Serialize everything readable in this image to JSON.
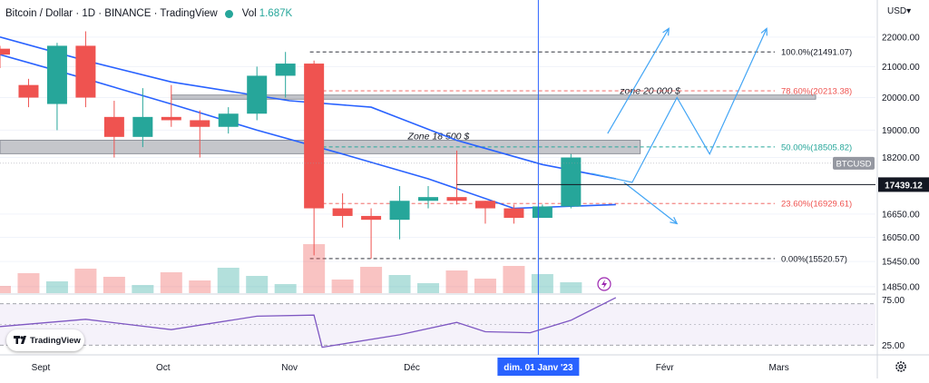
{
  "header": {
    "symbol_title": "Bitcoin / Dollar · 1D · BINANCE · TradingView",
    "volume_label": "Vol",
    "volume_value": "1.687K",
    "currency": "USD",
    "symbol_tag": "BTCUSD",
    "last_price": "17439.12"
  },
  "badge": {
    "label": "TradingView"
  },
  "icons": [
    "eye-icon",
    "tradingview-logo-icon",
    "lightning-icon",
    "gear-icon"
  ],
  "colors": {
    "up": "#26a69a",
    "down": "#ef5350",
    "ma": "#2962ff",
    "rsi": "#7e57c2",
    "crosshair": "#2962ff",
    "zone": "#9598a1",
    "arrows": "#42a5f5",
    "fib_red": "#ef5350",
    "fib_green": "#26a69a"
  },
  "chart_data": [
    {
      "type": "candlestick",
      "title": "Bitcoin / Dollar · 1D · BINANCE · TradingView",
      "price_scale": "log",
      "ylim": [
        14700,
        22600
      ],
      "y_ticks": [
        22000,
        21000,
        20000,
        19000,
        18200,
        17439.12,
        16650,
        16050,
        15450,
        14850
      ],
      "y_tick_labels": [
        "22000.00",
        "21000.00",
        "20000.00",
        "19000.00",
        "18200.00",
        "17439.12",
        "16650.00",
        "16050.00",
        "15450.00",
        "14850.00"
      ],
      "x_tick_labels": [
        "Sept",
        "Oct",
        "Nov",
        "Déc",
        "dim. 01 Janv '23",
        "Févr",
        "Mars"
      ],
      "x_range": [
        "2022-08-22",
        "2023-03-24"
      ],
      "crosshair_date": "2023-01-01",
      "current_price": 17439.12,
      "volume_header": "1.687K",
      "candles": [
        {
          "date": "2022-08-22",
          "o": 21600,
          "h": 21700,
          "l": 20950,
          "c": 21400
        },
        {
          "date": "2022-08-29",
          "o": 20400,
          "h": 20600,
          "l": 19700,
          "c": 20000
        },
        {
          "date": "2022-09-05",
          "o": 19800,
          "h": 21800,
          "l": 19000,
          "c": 21700
        },
        {
          "date": "2022-09-12",
          "o": 21700,
          "h": 22200,
          "l": 19700,
          "c": 20000
        },
        {
          "date": "2022-09-19",
          "o": 19400,
          "h": 19900,
          "l": 18200,
          "c": 18800
        },
        {
          "date": "2022-09-26",
          "o": 18800,
          "h": 20300,
          "l": 18500,
          "c": 19400
        },
        {
          "date": "2022-10-03",
          "o": 19400,
          "h": 20400,
          "l": 19100,
          "c": 19300
        },
        {
          "date": "2022-10-10",
          "o": 19300,
          "h": 19600,
          "l": 18200,
          "c": 19100
        },
        {
          "date": "2022-10-17",
          "o": 19100,
          "h": 19700,
          "l": 18900,
          "c": 19500
        },
        {
          "date": "2022-10-24",
          "o": 19500,
          "h": 21000,
          "l": 19300,
          "c": 20700
        },
        {
          "date": "2022-10-31",
          "o": 20700,
          "h": 21490,
          "l": 20000,
          "c": 21100
        },
        {
          "date": "2022-11-07",
          "o": 21100,
          "h": 21200,
          "l": 15600,
          "c": 16800
        },
        {
          "date": "2022-11-14",
          "o": 16800,
          "h": 17200,
          "l": 16300,
          "c": 16600
        },
        {
          "date": "2022-11-21",
          "o": 16600,
          "h": 16800,
          "l": 15520,
          "c": 16500
        },
        {
          "date": "2022-11-28",
          "o": 16500,
          "h": 17400,
          "l": 16000,
          "c": 17000
        },
        {
          "date": "2022-12-05",
          "o": 17000,
          "h": 17400,
          "l": 16800,
          "c": 17100
        },
        {
          "date": "2022-12-12",
          "o": 17100,
          "h": 18400,
          "l": 16900,
          "c": 17000
        },
        {
          "date": "2022-12-19",
          "o": 17000,
          "h": 17000,
          "l": 16400,
          "c": 16800
        },
        {
          "date": "2022-12-26",
          "o": 16800,
          "h": 16900,
          "l": 16400,
          "c": 16550
        },
        {
          "date": "2023-01-02",
          "o": 16550,
          "h": 16900,
          "l": 16550,
          "c": 16850
        },
        {
          "date": "2023-01-09",
          "o": 16850,
          "h": 18300,
          "l": 16800,
          "c": 18200
        }
      ],
      "moving_averages": [
        {
          "points": [
            [
              "2022-08-22",
              22000
            ],
            [
              "2022-09-12",
              21200
            ],
            [
              "2022-10-03",
              20500
            ],
            [
              "2022-11-01",
              19900
            ],
            [
              "2022-11-21",
              19700
            ],
            [
              "2022-12-12",
              18700
            ],
            [
              "2023-01-02",
              18000
            ],
            [
              "2023-01-20",
              17600
            ]
          ]
        },
        {
          "points": [
            [
              "2022-08-22",
              21400
            ],
            [
              "2022-09-12",
              20600
            ],
            [
              "2022-10-03",
              19800
            ],
            [
              "2022-10-24",
              19000
            ],
            [
              "2022-11-14",
              18300
            ],
            [
              "2022-12-05",
              17600
            ],
            [
              "2022-12-26",
              16800
            ],
            [
              "2023-01-20",
              16900
            ]
          ]
        }
      ],
      "horizontal_levels": [
        {
          "value": 21491.07,
          "label": "100.0%(21491.07)",
          "color": "#131722"
        },
        {
          "value": 20213.38,
          "label": "78.60%(20213.38)",
          "color": "#ef5350"
        },
        {
          "value": 18505.82,
          "label": "50.00%(18505.82)",
          "color": "#26a69a"
        },
        {
          "value": 16929.61,
          "label": "23.60%(16929.61)",
          "color": "#ef5350"
        },
        {
          "value": 15520.57,
          "label": "0.00%(15520.57)",
          "color": "#131722"
        }
      ],
      "zones": [
        {
          "label": "zone 20 000 $",
          "low": 19950,
          "high": 20080
        },
        {
          "label": "Zone 18 500 $",
          "low": 18310,
          "high": 18700
        }
      ],
      "projections": [
        {
          "points": [
            [
              "2023-01-18",
              18900
            ],
            [
              "2023-02-02",
              22300
            ]
          ]
        },
        {
          "points": [
            [
              "2023-01-14",
              17750
            ],
            [
              "2023-01-24",
              17500
            ],
            [
              "2023-02-04",
              20000
            ],
            [
              "2023-02-12",
              18300
            ],
            [
              "2023-02-26",
              22300
            ]
          ]
        },
        {
          "points": [
            [
              "2023-01-22",
              17500
            ],
            [
              "2023-02-04",
              16400
            ]
          ]
        }
      ]
    },
    {
      "type": "line",
      "title": "RSI",
      "ylim": [
        25,
        75
      ],
      "y_ticks": [
        75,
        25
      ],
      "y_tick_labels": [
        "75.00",
        "25.00"
      ],
      "band": [
        30,
        70
      ],
      "series": [
        {
          "values": [
            [
              "2022-08-22",
              48
            ],
            [
              "2022-09-12",
              55
            ],
            [
              "2022-10-03",
              45
            ],
            [
              "2022-10-24",
              58
            ],
            [
              "2022-11-07",
              59
            ],
            [
              "2022-11-09",
              28
            ],
            [
              "2022-11-28",
              40
            ],
            [
              "2022-12-12",
              52
            ],
            [
              "2022-12-19",
              43
            ],
            [
              "2022-12-30",
              42
            ],
            [
              "2023-01-09",
              54
            ],
            [
              "2023-01-20",
              76
            ]
          ]
        }
      ]
    }
  ]
}
